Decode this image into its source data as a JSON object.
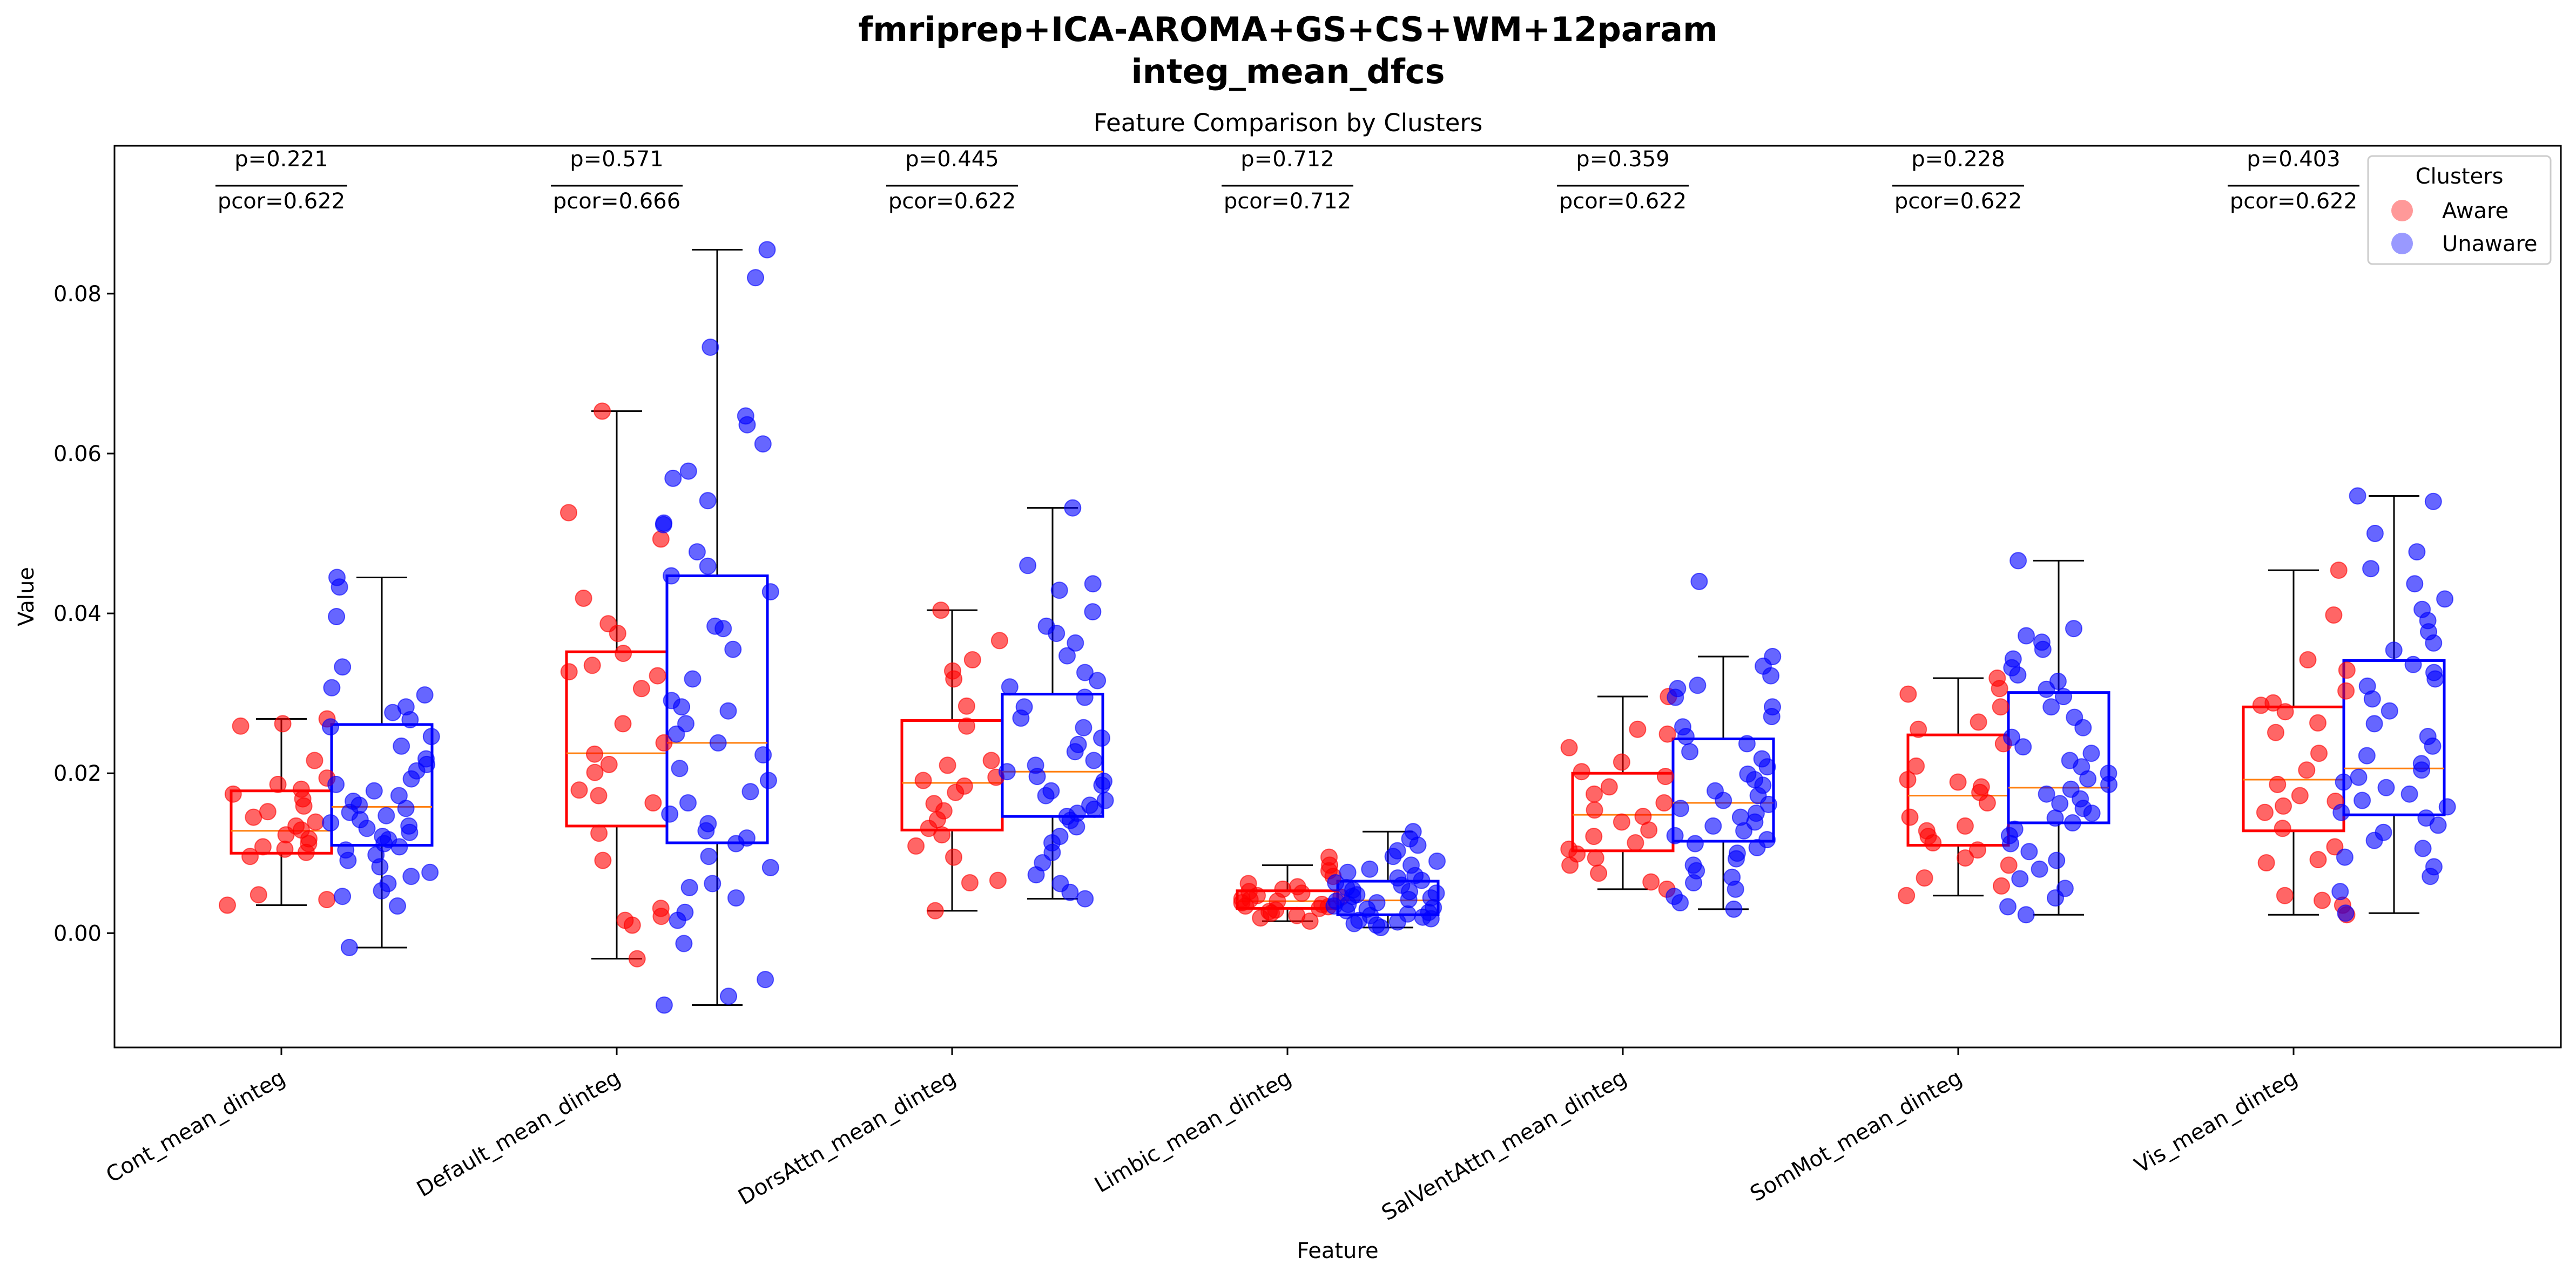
{
  "title_line1": "fmriprep+ICA-AROMA+GS+CS+WM+12param",
  "title_line2": "integ_mean_dfcs",
  "colors": {
    "aware": "#ff0000",
    "unaware": "#0000ff",
    "median": "#ff7f0e",
    "axis": "#000000"
  },
  "chart_data": {
    "type": "box",
    "title": "Feature Comparison by Clusters",
    "xlabel": "Feature",
    "ylabel": "Value",
    "ylim": [
      -0.0143,
      0.0985
    ],
    "yticks": [
      0.0,
      0.02,
      0.04,
      0.06,
      0.08
    ],
    "ytick_labels": [
      "0.00",
      "0.02",
      "0.04",
      "0.06",
      "0.08"
    ],
    "legend": {
      "title": "Clusters",
      "entries": [
        "Aware",
        "Unaware"
      ],
      "position": "upper right"
    },
    "categories": [
      "Cont_mean_dinteg",
      "Default_mean_dinteg",
      "DorsAttn_mean_dinteg",
      "Limbic_mean_dinteg",
      "SalVentAttn_mean_dinteg",
      "SomMot_mean_dinteg",
      "Vis_mean_dinteg"
    ],
    "p_labels": [
      "p=0.221",
      "p=0.571",
      "p=0.445",
      "p=0.712",
      "p=0.359",
      "p=0.228",
      "p=0.403"
    ],
    "pcor_labels": [
      "pcor=0.622",
      "pcor=0.666",
      "pcor=0.622",
      "pcor=0.712",
      "pcor=0.622",
      "pcor=0.622",
      "pcor=0.622"
    ],
    "series": [
      {
        "name": "Aware",
        "boxes": [
          {
            "min": 0.0035,
            "q1": 0.01,
            "median": 0.0128,
            "q3": 0.0178,
            "max": 0.0268
          },
          {
            "min": -0.0032,
            "q1": 0.0134,
            "median": 0.0225,
            "q3": 0.0352,
            "max": 0.0653
          },
          {
            "min": 0.0028,
            "q1": 0.0129,
            "median": 0.0188,
            "q3": 0.0266,
            "max": 0.0404
          },
          {
            "min": 0.0015,
            "q1": 0.0031,
            "median": 0.004,
            "q3": 0.0053,
            "max": 0.0085
          },
          {
            "min": 0.0055,
            "q1": 0.0103,
            "median": 0.0148,
            "q3": 0.02,
            "max": 0.0296
          },
          {
            "min": 0.0047,
            "q1": 0.011,
            "median": 0.0172,
            "q3": 0.0248,
            "max": 0.0319
          },
          {
            "min": 0.0023,
            "q1": 0.0128,
            "median": 0.0192,
            "q3": 0.0283,
            "max": 0.0454
          }
        ],
        "points": [
          [
            0.0035,
            0.0042,
            0.0048,
            0.0096,
            0.0101,
            0.0105,
            0.0108,
            0.0112,
            0.0118,
            0.0123,
            0.0129,
            0.0134,
            0.0139,
            0.0145,
            0.0152,
            0.0159,
            0.0168,
            0.0174,
            0.018,
            0.0186,
            0.0194,
            0.0216,
            0.0259,
            0.0262,
            0.0268
          ],
          [
            -0.0032,
            0.001,
            0.0016,
            0.0021,
            0.0031,
            0.0091,
            0.0125,
            0.0163,
            0.0172,
            0.0179,
            0.0201,
            0.0211,
            0.0224,
            0.0238,
            0.0262,
            0.0306,
            0.0322,
            0.0327,
            0.0335,
            0.035,
            0.0375,
            0.0387,
            0.0419,
            0.0493,
            0.0526,
            0.0653
          ],
          [
            0.0028,
            0.0063,
            0.0066,
            0.0095,
            0.0109,
            0.0123,
            0.0131,
            0.0142,
            0.0153,
            0.0162,
            0.0176,
            0.0184,
            0.0191,
            0.0195,
            0.021,
            0.0216,
            0.0259,
            0.0284,
            0.0318,
            0.0328,
            0.0342,
            0.0366,
            0.0404
          ],
          [
            0.0015,
            0.0019,
            0.0022,
            0.0025,
            0.0027,
            0.0029,
            0.0031,
            0.0033,
            0.0034,
            0.0036,
            0.0038,
            0.004,
            0.0042,
            0.0043,
            0.0045,
            0.0047,
            0.005,
            0.0052,
            0.0055,
            0.0058,
            0.0062,
            0.0071,
            0.0078,
            0.0085,
            0.0095
          ],
          [
            0.0055,
            0.0064,
            0.0075,
            0.0085,
            0.0094,
            0.0099,
            0.0105,
            0.0113,
            0.0121,
            0.0129,
            0.0139,
            0.0146,
            0.0154,
            0.0163,
            0.0174,
            0.0183,
            0.0196,
            0.0202,
            0.0214,
            0.0232,
            0.0249,
            0.0255,
            0.0296
          ],
          [
            0.0047,
            0.0059,
            0.0069,
            0.0085,
            0.0094,
            0.0104,
            0.0113,
            0.0121,
            0.0128,
            0.0134,
            0.0145,
            0.0163,
            0.0176,
            0.0183,
            0.0189,
            0.0192,
            0.0209,
            0.0237,
            0.0255,
            0.0264,
            0.0283,
            0.0299,
            0.0306,
            0.0319
          ],
          [
            0.0023,
            0.0035,
            0.0041,
            0.0047,
            0.0088,
            0.0092,
            0.0108,
            0.0131,
            0.0151,
            0.0159,
            0.0165,
            0.0172,
            0.0186,
            0.0204,
            0.0225,
            0.0251,
            0.0263,
            0.0277,
            0.0285,
            0.0288,
            0.0303,
            0.0329,
            0.0342,
            0.0398,
            0.0454
          ]
        ]
      },
      {
        "name": "Unaware",
        "boxes": [
          {
            "min": -0.0018,
            "q1": 0.011,
            "median": 0.0158,
            "q3": 0.0261,
            "max": 0.0445
          },
          {
            "min": -0.009,
            "q1": 0.0113,
            "median": 0.0238,
            "q3": 0.0447,
            "max": 0.0855
          },
          {
            "min": 0.0043,
            "q1": 0.0146,
            "median": 0.0202,
            "q3": 0.0299,
            "max": 0.0532
          },
          {
            "min": 0.0007,
            "q1": 0.0023,
            "median": 0.0041,
            "q3": 0.0065,
            "max": 0.0127
          },
          {
            "min": 0.003,
            "q1": 0.0115,
            "median": 0.0163,
            "q3": 0.0243,
            "max": 0.0346
          },
          {
            "min": 0.0023,
            "q1": 0.0138,
            "median": 0.0182,
            "q3": 0.0301,
            "max": 0.0466
          },
          {
            "min": 0.0025,
            "q1": 0.0148,
            "median": 0.0206,
            "q3": 0.0341,
            "max": 0.0547
          }
        ],
        "points": [
          [
            -0.0018,
            0.0034,
            0.0046,
            0.0053,
            0.0062,
            0.0071,
            0.0076,
            0.0083,
            0.0091,
            0.0098,
            0.0104,
            0.0108,
            0.0112,
            0.0117,
            0.0121,
            0.0126,
            0.0131,
            0.0134,
            0.0138,
            0.0142,
            0.0147,
            0.0151,
            0.0156,
            0.016,
            0.0165,
            0.0172,
            0.0178,
            0.0186,
            0.0193,
            0.0203,
            0.0211,
            0.0218,
            0.0234,
            0.0246,
            0.0258,
            0.0267,
            0.0276,
            0.0283,
            0.0298,
            0.0307,
            0.0333,
            0.0396,
            0.0433,
            0.0445
          ],
          [
            -0.009,
            -0.0079,
            -0.0058,
            -0.0013,
            0.0016,
            0.0026,
            0.0044,
            0.0057,
            0.0062,
            0.0082,
            0.0096,
            0.0112,
            0.0119,
            0.0128,
            0.0137,
            0.0149,
            0.0163,
            0.0177,
            0.0191,
            0.0206,
            0.0223,
            0.0238,
            0.0249,
            0.0262,
            0.0278,
            0.0283,
            0.0291,
            0.0318,
            0.0355,
            0.0381,
            0.0384,
            0.0427,
            0.0447,
            0.0459,
            0.0477,
            0.0511,
            0.0513,
            0.0541,
            0.0569,
            0.0578,
            0.0612,
            0.0636,
            0.0647,
            0.0733,
            0.082,
            0.0855
          ],
          [
            0.0043,
            0.0051,
            0.0062,
            0.0073,
            0.0088,
            0.0101,
            0.0113,
            0.0121,
            0.0133,
            0.0141,
            0.0146,
            0.015,
            0.0155,
            0.016,
            0.0166,
            0.0172,
            0.0178,
            0.0185,
            0.019,
            0.0196,
            0.0202,
            0.021,
            0.0216,
            0.0227,
            0.0236,
            0.0244,
            0.0257,
            0.0269,
            0.0283,
            0.0295,
            0.0308,
            0.0316,
            0.0326,
            0.0347,
            0.0363,
            0.0375,
            0.0384,
            0.0402,
            0.0429,
            0.0437,
            0.046,
            0.0532
          ],
          [
            0.0007,
            0.001,
            0.0012,
            0.0014,
            0.0016,
            0.0018,
            0.002,
            0.0022,
            0.0024,
            0.0026,
            0.0028,
            0.003,
            0.0032,
            0.0034,
            0.0036,
            0.0038,
            0.004,
            0.0042,
            0.0044,
            0.0046,
            0.0048,
            0.005,
            0.0052,
            0.0054,
            0.0057,
            0.006,
            0.0063,
            0.0066,
            0.0069,
            0.0072,
            0.0076,
            0.008,
            0.0085,
            0.009,
            0.0096,
            0.0103,
            0.011,
            0.0118,
            0.0127
          ],
          [
            0.003,
            0.0038,
            0.0046,
            0.0055,
            0.0063,
            0.007,
            0.0078,
            0.0085,
            0.0093,
            0.01,
            0.0107,
            0.0112,
            0.0117,
            0.0122,
            0.0128,
            0.0134,
            0.0139,
            0.0145,
            0.015,
            0.0156,
            0.0161,
            0.0166,
            0.0172,
            0.0178,
            0.0185,
            0.0192,
            0.0199,
            0.0208,
            0.0218,
            0.0227,
            0.0237,
            0.0246,
            0.0258,
            0.0271,
            0.0283,
            0.0295,
            0.0306,
            0.031,
            0.0322,
            0.0334,
            0.0346,
            0.044
          ],
          [
            0.0023,
            0.0033,
            0.0044,
            0.0056,
            0.0068,
            0.008,
            0.0091,
            0.0102,
            0.0112,
            0.0122,
            0.013,
            0.0138,
            0.0144,
            0.015,
            0.0156,
            0.0162,
            0.0168,
            0.0174,
            0.018,
            0.0186,
            0.0193,
            0.02,
            0.0208,
            0.0216,
            0.0225,
            0.0233,
            0.0245,
            0.0257,
            0.027,
            0.0283,
            0.0296,
            0.0305,
            0.0315,
            0.0323,
            0.0332,
            0.0343,
            0.0355,
            0.0364,
            0.0372,
            0.0381,
            0.0466
          ],
          [
            0.0025,
            0.0052,
            0.0071,
            0.0083,
            0.0095,
            0.0106,
            0.0116,
            0.0126,
            0.0135,
            0.0144,
            0.0151,
            0.0158,
            0.0166,
            0.0174,
            0.0182,
            0.0189,
            0.0195,
            0.0204,
            0.0212,
            0.0222,
            0.0234,
            0.0246,
            0.0262,
            0.0278,
            0.0293,
            0.0309,
            0.0318,
            0.0326,
            0.0336,
            0.0354,
            0.0363,
            0.0377,
            0.0391,
            0.0405,
            0.0418,
            0.0437,
            0.0456,
            0.0477,
            0.05,
            0.054,
            0.0547
          ]
        ]
      }
    ]
  }
}
